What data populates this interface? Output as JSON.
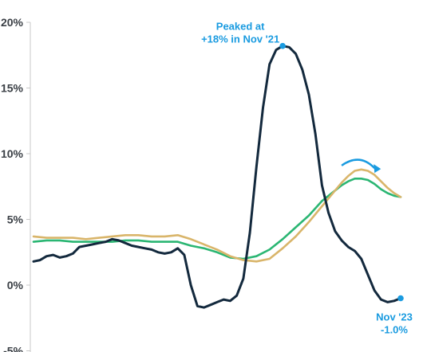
{
  "chart_data": {
    "type": "line",
    "ylim": [
      -5,
      20
    ],
    "yticks": [
      20,
      15,
      10,
      5,
      0,
      -5
    ],
    "ytick_labels": [
      "20%",
      "15%",
      "10%",
      "5%",
      "0%",
      "-5%"
    ],
    "grid": false,
    "legend": "none",
    "x_unit": "month index (unlabeled axis)",
    "series": [
      {
        "color": "#13293d",
        "points": [
          [
            0,
            1.8
          ],
          [
            1,
            1.9
          ],
          [
            2,
            2.2
          ],
          [
            3,
            2.3
          ],
          [
            4,
            2.1
          ],
          [
            5,
            2.2
          ],
          [
            6,
            2.4
          ],
          [
            7,
            2.9
          ],
          [
            8,
            3.0
          ],
          [
            9,
            3.1
          ],
          [
            10,
            3.2
          ],
          [
            11,
            3.3
          ],
          [
            12,
            3.5
          ],
          [
            13,
            3.4
          ],
          [
            14,
            3.2
          ],
          [
            15,
            3.0
          ],
          [
            16,
            2.9
          ],
          [
            17,
            2.8
          ],
          [
            18,
            2.7
          ],
          [
            19,
            2.5
          ],
          [
            20,
            2.4
          ],
          [
            21,
            2.5
          ],
          [
            22,
            2.8
          ],
          [
            23,
            2.3
          ],
          [
            24,
            0.0
          ],
          [
            25,
            -1.6
          ],
          [
            26,
            -1.7
          ],
          [
            27,
            -1.5
          ],
          [
            28,
            -1.3
          ],
          [
            29,
            -1.1
          ],
          [
            30,
            -1.2
          ],
          [
            31,
            -0.8
          ],
          [
            32,
            0.5
          ],
          [
            33,
            4.0
          ],
          [
            34,
            9.0
          ],
          [
            35,
            13.5
          ],
          [
            36,
            16.8
          ],
          [
            37,
            17.9
          ],
          [
            38,
            18.2
          ],
          [
            39,
            18.1
          ],
          [
            40,
            17.6
          ],
          [
            41,
            16.4
          ],
          [
            42,
            14.5
          ],
          [
            43,
            11.5
          ],
          [
            44,
            7.6
          ],
          [
            45,
            5.5
          ],
          [
            46,
            4.1
          ],
          [
            47,
            3.4
          ],
          [
            48,
            2.9
          ],
          [
            49,
            2.6
          ],
          [
            50,
            2.0
          ],
          [
            51,
            0.8
          ],
          [
            52,
            -0.4
          ],
          [
            53,
            -1.1
          ],
          [
            54,
            -1.3
          ],
          [
            55,
            -1.2
          ],
          [
            56,
            -1.0
          ]
        ]
      },
      {
        "color": "#d9b56a",
        "points": [
          [
            0,
            3.7
          ],
          [
            2,
            3.6
          ],
          [
            4,
            3.6
          ],
          [
            6,
            3.6
          ],
          [
            8,
            3.5
          ],
          [
            10,
            3.6
          ],
          [
            12,
            3.7
          ],
          [
            14,
            3.8
          ],
          [
            16,
            3.8
          ],
          [
            18,
            3.7
          ],
          [
            20,
            3.7
          ],
          [
            22,
            3.8
          ],
          [
            24,
            3.5
          ],
          [
            26,
            3.1
          ],
          [
            28,
            2.7
          ],
          [
            30,
            2.2
          ],
          [
            32,
            1.9
          ],
          [
            34,
            1.8
          ],
          [
            36,
            2.0
          ],
          [
            38,
            2.8
          ],
          [
            40,
            3.7
          ],
          [
            42,
            4.8
          ],
          [
            44,
            6.0
          ],
          [
            46,
            7.2
          ],
          [
            47,
            7.8
          ],
          [
            48,
            8.3
          ],
          [
            49,
            8.7
          ],
          [
            50,
            8.8
          ],
          [
            51,
            8.7
          ],
          [
            52,
            8.4
          ],
          [
            53,
            7.9
          ],
          [
            54,
            7.4
          ],
          [
            55,
            7.0
          ],
          [
            56,
            6.7
          ]
        ]
      },
      {
        "color": "#2bb673",
        "points": [
          [
            0,
            3.3
          ],
          [
            2,
            3.4
          ],
          [
            4,
            3.4
          ],
          [
            6,
            3.3
          ],
          [
            8,
            3.3
          ],
          [
            10,
            3.3
          ],
          [
            12,
            3.3
          ],
          [
            14,
            3.4
          ],
          [
            16,
            3.4
          ],
          [
            18,
            3.3
          ],
          [
            20,
            3.3
          ],
          [
            22,
            3.3
          ],
          [
            24,
            3.0
          ],
          [
            26,
            2.8
          ],
          [
            28,
            2.5
          ],
          [
            30,
            2.1
          ],
          [
            32,
            2.0
          ],
          [
            34,
            2.2
          ],
          [
            36,
            2.7
          ],
          [
            38,
            3.5
          ],
          [
            40,
            4.4
          ],
          [
            42,
            5.3
          ],
          [
            44,
            6.4
          ],
          [
            46,
            7.2
          ],
          [
            47,
            7.6
          ],
          [
            48,
            7.9
          ],
          [
            49,
            8.1
          ],
          [
            50,
            8.1
          ],
          [
            51,
            8.0
          ],
          [
            52,
            7.7
          ],
          [
            53,
            7.3
          ],
          [
            54,
            7.0
          ],
          [
            55,
            6.8
          ],
          [
            56,
            6.7
          ]
        ]
      }
    ],
    "annotations": [
      {
        "lines": [
          "Peaked at",
          "+18% in Nov '21"
        ],
        "x": 38,
        "y": 18.2,
        "marker_color": "#1a9be0"
      },
      {
        "lines": [
          "Nov '23",
          "-1.0%"
        ],
        "x": 56,
        "y": -1.0,
        "marker_color": "#1a9be0"
      }
    ],
    "arrow": {
      "color": "#1a9be0",
      "from": [
        47,
        9.1
      ],
      "to": [
        52.5,
        8.9
      ]
    }
  }
}
